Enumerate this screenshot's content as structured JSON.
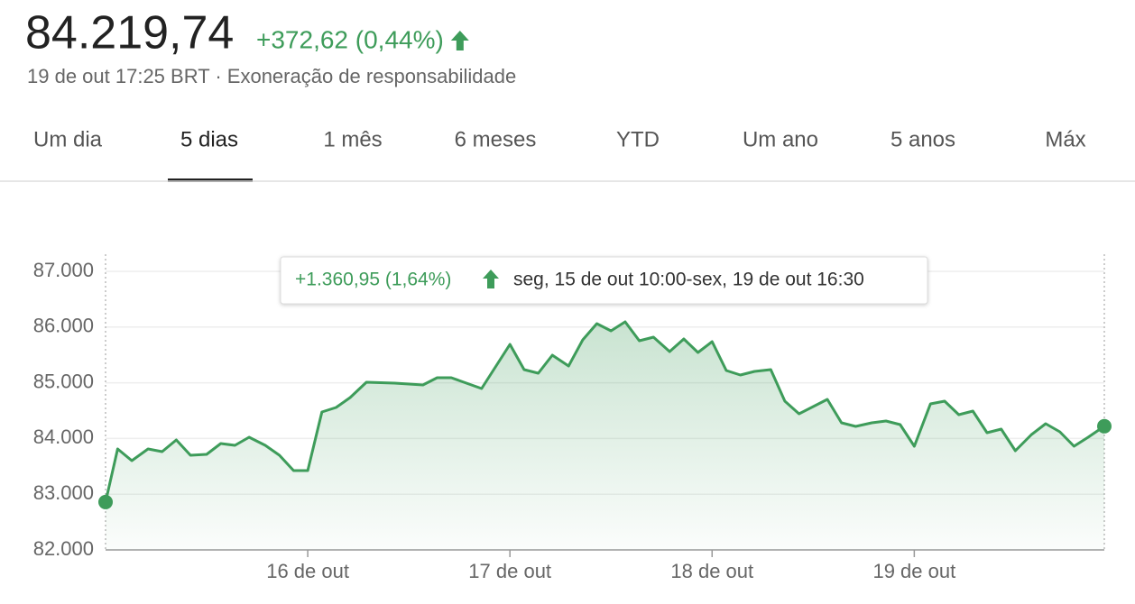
{
  "header": {
    "price": "84.219,74",
    "change": "+372,62 (0,44%)",
    "subtitle": "19 de out 17:25 BRT · Exoneração de responsabilidade"
  },
  "tabs": {
    "items": [
      "Um dia",
      "5 dias",
      "1 mês",
      "6 meses",
      "YTD",
      "Um ano",
      "5 anos",
      "Máx"
    ],
    "selected": 1
  },
  "tooltip": {
    "change": "+1.360,95 (1,64%)",
    "range": "seg, 15 de out 10:00-sex, 19 de out 16:30"
  },
  "chart_data": {
    "type": "line",
    "color": "#3e9c5a",
    "grid": true,
    "x": [
      15.0,
      15.06,
      15.13,
      15.21,
      15.28,
      15.35,
      15.42,
      15.5,
      15.57,
      15.64,
      15.71,
      15.79,
      15.86,
      15.93,
      16.0,
      16.07,
      16.14,
      16.21,
      16.29,
      16.43,
      16.57,
      16.64,
      16.71,
      16.86,
      17.0,
      17.07,
      17.14,
      17.21,
      17.29,
      17.36,
      17.43,
      17.5,
      17.57,
      17.64,
      17.71,
      17.79,
      17.86,
      17.93,
      18.0,
      18.07,
      18.14,
      18.21,
      18.29,
      18.36,
      18.43,
      18.57,
      18.64,
      18.71,
      18.79,
      18.86,
      18.93,
      19.0,
      19.08,
      19.15,
      19.22,
      19.29,
      19.36,
      19.43,
      19.5,
      19.58,
      19.65,
      19.72,
      19.79,
      19.86,
      19.94
    ],
    "values": [
      82859,
      83812,
      83602,
      83812,
      83764,
      83974,
      83699,
      83715,
      83909,
      83877,
      84023,
      83877,
      83699,
      83424,
      83424,
      84476,
      84557,
      84735,
      85010,
      84994,
      84961,
      85091,
      85091,
      84896,
      85689,
      85236,
      85171,
      85495,
      85301,
      85770,
      86061,
      85932,
      86094,
      85754,
      85819,
      85560,
      85786,
      85544,
      85738,
      85220,
      85139,
      85204,
      85236,
      84670,
      84443,
      84702,
      84282,
      84217,
      84282,
      84314,
      84249,
      83861,
      84621,
      84670,
      84427,
      84492,
      84104,
      84168,
      83780,
      84071,
      84265,
      84120,
      83861,
      84023,
      84220
    ],
    "xlim": [
      15,
      19.94
    ],
    "ylim": [
      82000,
      87000
    ],
    "xticks": [
      {
        "value": 16,
        "label": "16 de out"
      },
      {
        "value": 17,
        "label": "17 de out"
      },
      {
        "value": 18,
        "label": "18 de out"
      },
      {
        "value": 19,
        "label": "19 de out"
      }
    ],
    "yticks": [
      {
        "value": 82000,
        "label": "82.000"
      },
      {
        "value": 83000,
        "label": "83.000"
      },
      {
        "value": 84000,
        "label": "84.000"
      },
      {
        "value": 85000,
        "label": "85.000"
      },
      {
        "value": 86000,
        "label": "86.000"
      },
      {
        "value": 87000,
        "label": "87.000"
      }
    ]
  }
}
